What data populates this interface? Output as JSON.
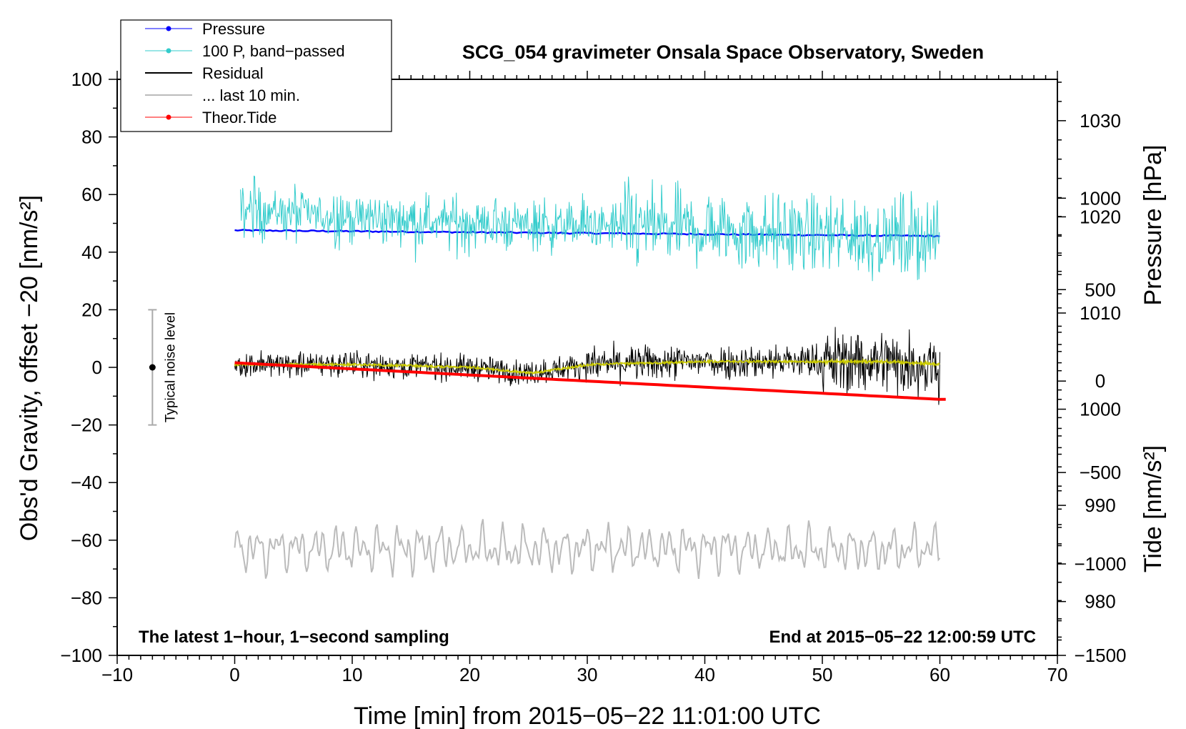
{
  "chart_data": {
    "type": "line",
    "title": "SCG_054 gravimeter Onsala Space Observatory, Sweden",
    "xlabel": "Time [min] from 2015−05−22 11:01:00 UTC",
    "ylabel_left": "Obs'd Gravity, offset −20 [nm/s²]",
    "ylabel_pressure": "Pressure [hPa]",
    "ylabel_tide": "Tide [nm/s²]",
    "xlim": [
      -10,
      70
    ],
    "ylim": [
      -100,
      100
    ],
    "pressure_range": [
      974.4,
      1034.3
    ],
    "tide_range": [
      -1500,
      1650
    ],
    "x_ticks": [
      -10,
      0,
      10,
      20,
      30,
      40,
      50,
      60,
      70
    ],
    "x_tick_labels": [
      "−10",
      "0",
      "10",
      "20",
      "30",
      "40",
      "50",
      "60",
      "70"
    ],
    "y_ticks": [
      100,
      80,
      60,
      40,
      20,
      0,
      -20,
      -40,
      -60,
      -80,
      -100
    ],
    "y_tick_labels": [
      "100",
      "80",
      "60",
      "40",
      "20",
      "0",
      "−20",
      "−40",
      "−60",
      "−80",
      "−100"
    ],
    "pressure_ticks": [
      1030,
      1020,
      1010,
      1000,
      990,
      980
    ],
    "pressure_tick_labels": [
      "1030",
      "1020",
      "1010",
      "1000",
      "990",
      "980"
    ],
    "tide_ticks": [
      1000,
      500,
      0,
      -500,
      -1000,
      -1500
    ],
    "tide_tick_labels": [
      "1000",
      "500",
      "0",
      "−500",
      "−1000",
      "−1500"
    ],
    "series": [
      {
        "name": "Pressure",
        "color": "#0000ff",
        "axis": "pressure",
        "x": [
          0,
          30,
          60
        ],
        "values": [
          1018.6,
          1018.3,
          1018.0
        ]
      },
      {
        "name": "100 P, band−passed",
        "color": "#33cccc",
        "axis": "left",
        "x": [
          0,
          10,
          20,
          30,
          40,
          50,
          60
        ],
        "values": [
          55,
          52,
          50,
          49,
          48,
          46,
          45
        ],
        "noise_range": [
          24,
          67
        ]
      },
      {
        "name": "Residual",
        "color": "#000000",
        "axis": "left",
        "x": [
          0,
          10,
          20,
          25,
          30,
          40,
          50,
          55,
          60
        ],
        "values": [
          1,
          1,
          0,
          -2,
          1,
          2,
          2,
          2,
          1
        ],
        "noise_range": [
          -15,
          18
        ]
      },
      {
        "name": "... last 10 min.",
        "color": "#bbbbbb",
        "axis": "left",
        "x": [
          0,
          60
        ],
        "values": [
          -63,
          -63
        ],
        "noise_range": [
          -79,
          -45
        ]
      },
      {
        "name": "Theor.Tide",
        "color": "#ff0000",
        "axis": "tide",
        "x": [
          0,
          60
        ],
        "values": [
          100,
          -100
        ]
      }
    ],
    "smoothed_residual_color": "#cccc00",
    "noise_bar": {
      "label": "Typical noise level",
      "x": -7,
      "center": 0,
      "half_range": 20
    },
    "note_left": "The latest 1−hour, 1−second sampling",
    "note_right": "End at 2015−05−22 12:00:59 UTC",
    "legend": [
      {
        "label": "Pressure",
        "color": "#0000ff",
        "marker": "dot"
      },
      {
        "label": "100 P, band−passed",
        "color": "#33cccc",
        "marker": "dot"
      },
      {
        "label": "Residual",
        "color": "#000000",
        "marker": "none"
      },
      {
        "label": "... last 10 min.",
        "color": "#bbbbbb",
        "marker": "none"
      },
      {
        "label": "Theor.Tide",
        "color": "#ff0000",
        "marker": "dot"
      }
    ]
  }
}
